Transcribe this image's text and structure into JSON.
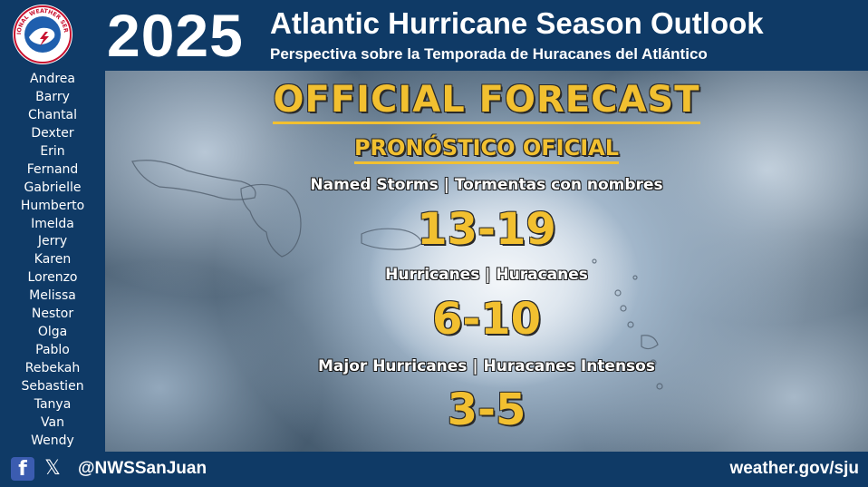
{
  "header": {
    "logo_text": "NATIONAL WEATHER SERVICE",
    "year": "2025",
    "title": "Atlantic Hurricane Season Outlook",
    "subtitle": "Perspectiva sobre la Temporada de Huracanes del Atlántico"
  },
  "sidebar": {
    "names": [
      "Andrea",
      "Barry",
      "Chantal",
      "Dexter",
      "Erin",
      "Fernand",
      "Gabrielle",
      "Humberto",
      "Imelda",
      "Jerry",
      "Karen",
      "Lorenzo",
      "Melissa",
      "Nestor",
      "Olga",
      "Pablo",
      "Rebekah",
      "Sebastien",
      "Tanya",
      "Van",
      "Wendy"
    ]
  },
  "forecast": {
    "headline": "OFFICIAL FORECAST",
    "headline_es": "PRONÓSTICO OFICIAL",
    "named_storms_label": "Named Storms | Tormentas con nombres",
    "named_storms_value": "13-19",
    "hurricanes_label": "Hurricanes | Huracanes",
    "hurricanes_value": "6-10",
    "major_label": "Major Hurricanes | Huracanes Intensos",
    "major_value": "3-5"
  },
  "footer": {
    "facebook_icon": "f",
    "x_icon": "𝕏",
    "handle": "@NWSSanJuan",
    "website": "weather.gov/sju"
  },
  "colors": {
    "navy": "#0f3a66",
    "gold": "#f2c030",
    "white": "#ffffff",
    "facebook": "#3b5cb0"
  }
}
